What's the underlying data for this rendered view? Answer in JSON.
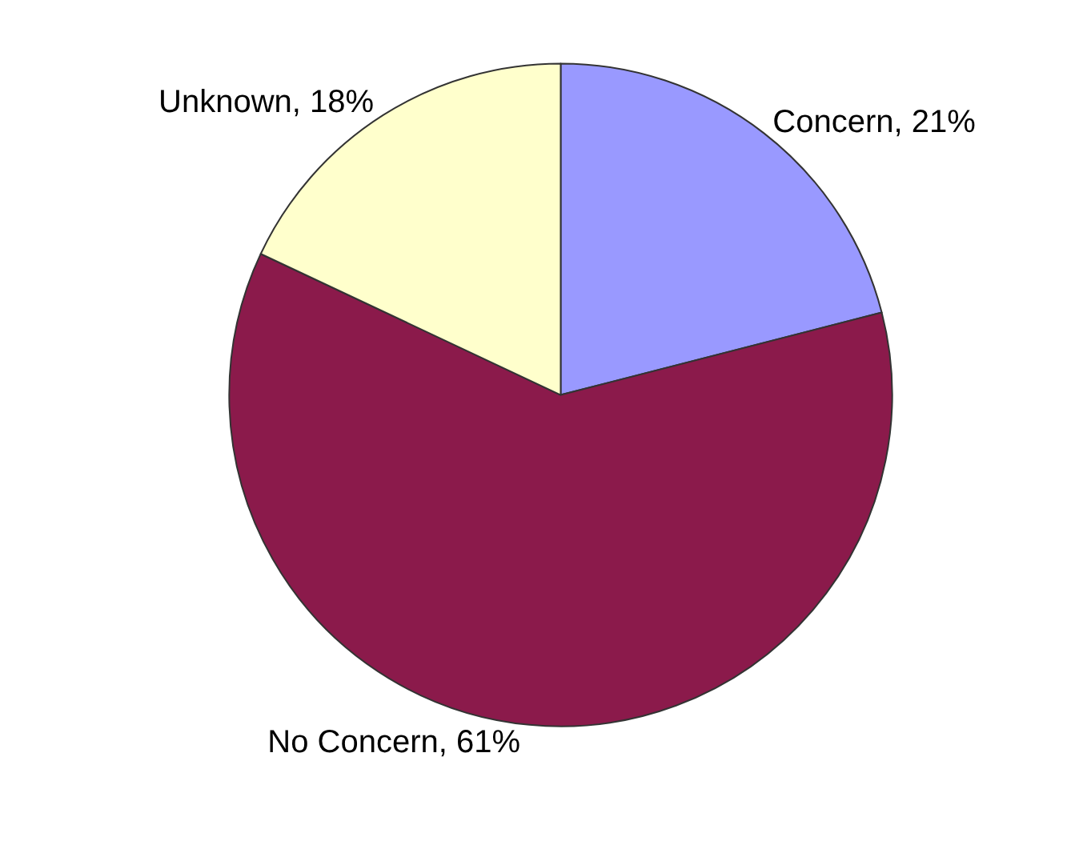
{
  "chart_data": {
    "type": "pie",
    "categories": [
      "Concern",
      "No Concern",
      "Unknown"
    ],
    "values": [
      21,
      61,
      18
    ],
    "value_labels": [
      "21%",
      "61%",
      "18%"
    ],
    "colors": [
      "#9999ff",
      "#8b1a4b",
      "#ffffcc"
    ],
    "legend": false
  }
}
